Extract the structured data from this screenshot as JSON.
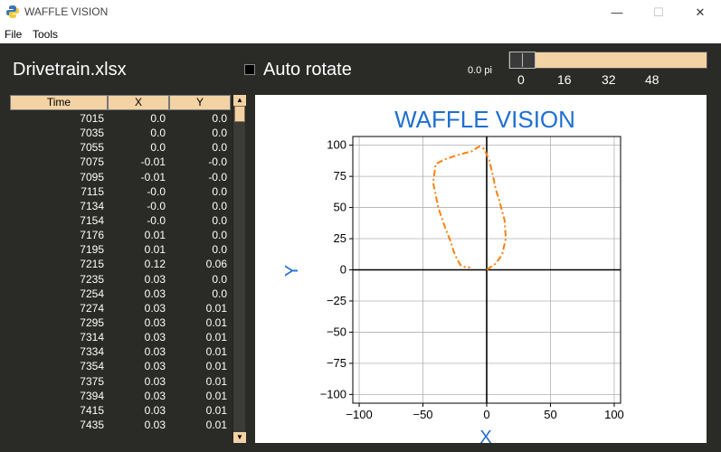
{
  "window": {
    "title": "WAFFLE VISION",
    "minimize": "—",
    "maximize": "☐",
    "close": "✕"
  },
  "menu": [
    "File",
    "Tools"
  ],
  "toolbar": {
    "filename": "Drivetrain.xlsx",
    "auto_rotate_label": "Auto rotate",
    "auto_rotate_checked": false,
    "angle_readout": "0.0 pi",
    "slider_ticks": [
      "0",
      "16",
      "32",
      "48"
    ],
    "slider_value": 0
  },
  "table": {
    "columns": [
      "Time",
      "X",
      "Y"
    ],
    "rows": [
      [
        "7015",
        "0.0",
        "0.0"
      ],
      [
        "7035",
        "0.0",
        "0.0"
      ],
      [
        "7055",
        "0.0",
        "0.0"
      ],
      [
        "7075",
        "-0.01",
        "-0.0"
      ],
      [
        "7095",
        "-0.01",
        "-0.0"
      ],
      [
        "7115",
        "-0.0",
        "0.0"
      ],
      [
        "7134",
        "-0.0",
        "0.0"
      ],
      [
        "7154",
        "-0.0",
        "0.0"
      ],
      [
        "7176",
        "0.01",
        "0.0"
      ],
      [
        "7195",
        "0.01",
        "0.0"
      ],
      [
        "7215",
        "0.12",
        "0.06"
      ],
      [
        "7235",
        "0.03",
        "0.0"
      ],
      [
        "7254",
        "0.03",
        "0.0"
      ],
      [
        "7274",
        "0.03",
        "0.01"
      ],
      [
        "7295",
        "0.03",
        "0.01"
      ],
      [
        "7314",
        "0.03",
        "0.01"
      ],
      [
        "7334",
        "0.03",
        "0.01"
      ],
      [
        "7354",
        "0.03",
        "0.01"
      ],
      [
        "7375",
        "0.03",
        "0.01"
      ],
      [
        "7394",
        "0.03",
        "0.01"
      ],
      [
        "7415",
        "0.03",
        "0.01"
      ],
      [
        "7435",
        "0.03",
        "0.01"
      ]
    ]
  },
  "colors": {
    "accent": "#f3d2a4",
    "panel": "#2a2a26",
    "title_blue": "#1f6fd1",
    "path_orange": "#ff7f0e"
  },
  "chart_data": {
    "type": "line",
    "title": "WAFFLE VISION",
    "xlabel": "X",
    "ylabel": "Y",
    "xlim": [
      -105,
      105
    ],
    "ylim": [
      -107,
      107
    ],
    "xticks": [
      -100,
      -50,
      0,
      50,
      100
    ],
    "yticks": [
      -100,
      -75,
      -50,
      -25,
      0,
      25,
      50,
      75,
      100
    ],
    "xtick_labels": [
      "−100",
      "−50",
      "0",
      "50",
      "100"
    ],
    "ytick_labels": [
      "−100",
      "−75",
      "−50",
      "−25",
      "0",
      "25",
      "50",
      "75",
      "100"
    ],
    "grid": true,
    "series": [
      {
        "style": "dash-dot",
        "x": [
          0,
          7,
          12,
          15,
          14,
          10,
          7,
          5,
          2,
          -2,
          -6,
          -12,
          -20,
          -32,
          -40,
          -42,
          -38,
          -33,
          -28,
          -26,
          -23,
          -20,
          -16,
          -13
        ],
        "y": [
          0,
          5,
          12,
          25,
          40,
          55,
          65,
          75,
          88,
          97,
          99,
          95,
          93,
          89,
          85,
          70,
          50,
          35,
          22,
          15,
          8,
          3,
          2,
          2
        ]
      }
    ]
  }
}
